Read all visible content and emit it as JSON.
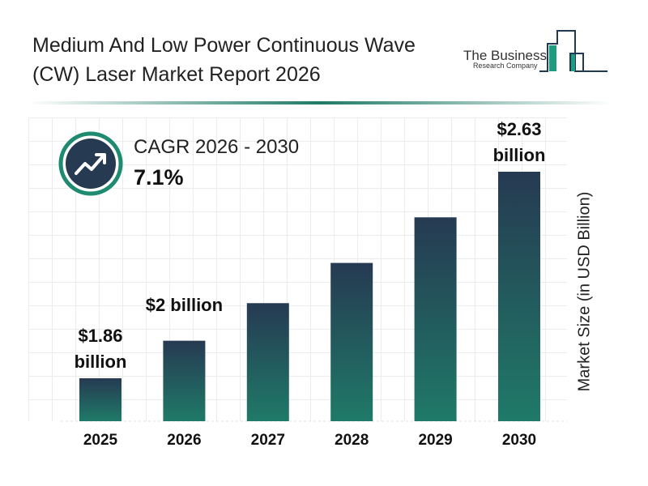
{
  "title": "Medium And Low Power Continuous Wave (CW) Laser Market Report 2026",
  "logo": {
    "line1": "The Business",
    "line2": "Research Company"
  },
  "cagr": {
    "label": "CAGR 2026 - 2030",
    "value": "7.1%",
    "icon": "trending-up-icon"
  },
  "colors": {
    "bar_top": "#263a52",
    "bar_bottom": "#1f7a68",
    "accent": "#1e8a70",
    "icon_bg": "#263a52"
  },
  "chart_data": {
    "type": "bar",
    "categories": [
      "2025",
      "2026",
      "2027",
      "2028",
      "2029",
      "2030"
    ],
    "values": [
      1.86,
      2.0,
      2.14,
      2.29,
      2.46,
      2.63
    ],
    "data_labels": [
      "$1.86\nbillion",
      "$2 billion",
      "",
      "",
      "",
      "$2.63\nbillion"
    ],
    "xlabel": "",
    "ylabel": "Market Size (in USD Billion)",
    "ylim": [
      1.7,
      2.65
    ],
    "grid": true
  }
}
